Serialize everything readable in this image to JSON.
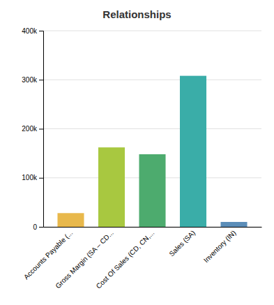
{
  "chart_data": {
    "type": "bar",
    "title": "Relationships",
    "categories": [
      "Accounts Payable (...",
      "Gross Margin (SA – CD...",
      "Cost Of Sales (CD, CN,...",
      "Sales (SA)",
      "Inventory (IN)"
    ],
    "values": [
      28000,
      162000,
      148000,
      308000,
      10000
    ],
    "colors": [
      "#e8b84b",
      "#a8c840",
      "#4dab6e",
      "#3aada8",
      "#5b8db8"
    ],
    "ylim": [
      0,
      400000
    ],
    "yticks": [
      0,
      {
        "value": 100000,
        "label": "100k"
      },
      {
        "value": 200000,
        "label": "200k"
      },
      {
        "value": 300000,
        "label": "300k"
      },
      {
        "value": 400000,
        "label": "400k"
      }
    ],
    "grid": true
  }
}
